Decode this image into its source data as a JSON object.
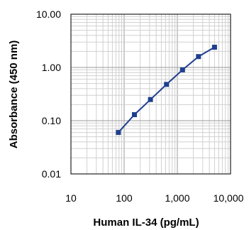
{
  "chart_data": {
    "type": "line",
    "title": "",
    "xlabel": "Human IL-34 (pg/mL)",
    "ylabel": "Absorbance (450 nm)",
    "xscale": "log",
    "yscale": "log",
    "xlim": [
      10,
      10000
    ],
    "ylim": [
      0.01,
      10
    ],
    "xticks": [
      "10",
      "100",
      "1,000",
      "10,000"
    ],
    "yticks": [
      "10.00",
      "1.00",
      "0.10",
      "0.01"
    ],
    "grid": true,
    "legend": "none",
    "series": [
      {
        "x": [
          78,
          156,
          312,
          625,
          1250,
          2500,
          5000
        ],
        "y": [
          0.06,
          0.13,
          0.25,
          0.48,
          0.9,
          1.6,
          2.4
        ],
        "color": "#1f3f8f"
      }
    ]
  }
}
